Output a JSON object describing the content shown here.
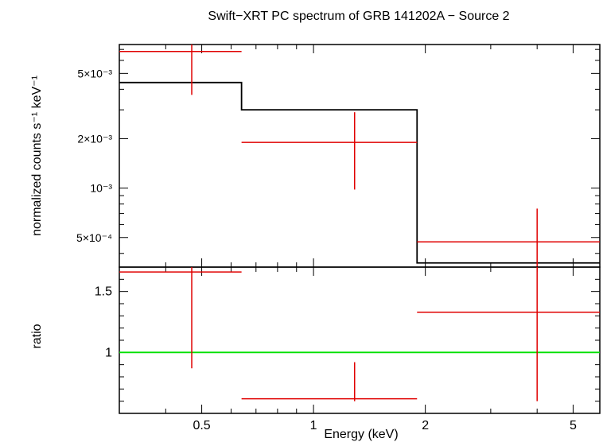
{
  "chart_data": [
    {
      "type": "scatter",
      "title": "Swift−XRT PC spectrum of GRB 141202A − Source 2",
      "ylabel": "normalized counts s⁻¹ keV⁻¹",
      "xscale": "log",
      "yscale": "log",
      "xlim": [
        0.3,
        5.9
      ],
      "ylim": [
        0.00033,
        0.0075
      ],
      "yticks": [
        {
          "value": 0.005,
          "label": "5×10⁻³"
        },
        {
          "value": 0.002,
          "label": "2×10⁻³"
        },
        {
          "value": 0.001,
          "label": "10⁻³"
        },
        {
          "value": 0.0005,
          "label": "5×10⁻⁴"
        }
      ],
      "series": [
        {
          "kind": "data-with-errors",
          "color": "#e00000",
          "points": [
            {
              "x": 0.47,
              "xlo": 0.3,
              "xhi": 0.64,
              "y": 0.0068,
              "ylo": 0.0037,
              "yhi": 0.0075
            },
            {
              "x": 1.29,
              "xlo": 0.64,
              "xhi": 1.9,
              "y": 0.0019,
              "ylo": 0.00098,
              "yhi": 0.0029
            },
            {
              "x": 4.0,
              "xlo": 1.9,
              "xhi": 5.9,
              "y": 0.00047,
              "ylo": 0.00033,
              "yhi": 0.00075
            }
          ]
        },
        {
          "kind": "model-step",
          "color": "#000000",
          "steps": [
            {
              "xlo": 0.3,
              "xhi": 0.64,
              "y": 0.0044
            },
            {
              "xlo": 0.64,
              "xhi": 1.9,
              "y": 0.003
            },
            {
              "xlo": 1.9,
              "xhi": 5.9,
              "y": 0.00035
            }
          ]
        }
      ]
    },
    {
      "type": "scatter",
      "xlabel": "Energy (keV)",
      "ylabel": "ratio",
      "xscale": "log",
      "xlim": [
        0.3,
        5.9
      ],
      "ylim": [
        0.5,
        1.7
      ],
      "xticks": [
        {
          "value": 0.5,
          "label": "0.5"
        },
        {
          "value": 1,
          "label": "1"
        },
        {
          "value": 2,
          "label": "2"
        },
        {
          "value": 5,
          "label": "5"
        }
      ],
      "yticks": [
        {
          "value": 1.5,
          "label": "1.5"
        },
        {
          "value": 1,
          "label": "1"
        }
      ],
      "reference_line": {
        "y": 1,
        "color": "#00e000"
      },
      "series": [
        {
          "kind": "data-with-errors",
          "color": "#e00000",
          "points": [
            {
              "x": 0.47,
              "xlo": 0.3,
              "xhi": 0.64,
              "y": 1.66,
              "ylo": 0.87,
              "yhi": 1.7
            },
            {
              "x": 1.29,
              "xlo": 0.64,
              "xhi": 1.9,
              "y": 0.62,
              "ylo": 0.6,
              "yhi": 0.92
            },
            {
              "x": 4.0,
              "xlo": 1.9,
              "xhi": 5.9,
              "y": 1.33,
              "ylo": 0.6,
              "yhi": 1.7
            }
          ]
        }
      ]
    }
  ]
}
